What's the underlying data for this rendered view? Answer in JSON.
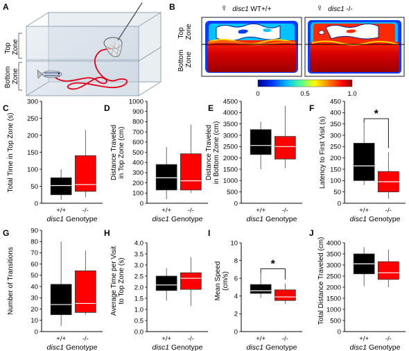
{
  "panel_labels": [
    "A",
    "B",
    "C",
    "D",
    "E",
    "F",
    "G",
    "H",
    "I",
    "J"
  ],
  "panel_a": {
    "top_zone": "Top\nZone",
    "bottom_zone": "Bottom\nZone"
  },
  "panel_b": {
    "wt_label_sex": "♀",
    "wt_label_gene": "disc1",
    "wt_label_genotype": " WT+/+",
    "mut_label_sex": "♀",
    "mut_label_gene": "disc1",
    "mut_label_genotype": " -/-",
    "top_zone": "Top\nZone",
    "bottom_zone": "Bottom\nZone",
    "colorbar_ticks": [
      "0",
      "0.5",
      "1.0"
    ],
    "colors": {
      "hot": "#b80000",
      "warm": "#ff3a00",
      "cool": "#1e6ff0",
      "border": "#1a1a1a"
    }
  },
  "genotype_label": {
    "gene": "disc1",
    "rest": " Genotype"
  },
  "colors": {
    "wt": "#000000",
    "mut": "#ff0000",
    "whisker": "#555555"
  },
  "chart_data": [
    {
      "panel": "C",
      "type": "box",
      "categories": [],
      "ylabel": "Total Time in Top Zone (s)",
      "yticks": [
        "0",
        "50",
        "100",
        "150",
        "200",
        "250",
        "300"
      ],
      "ylim": [
        0,
        300
      ],
      "series": [
        {
          "name": "+/+",
          "whisker_min": 10,
          "q1": 25,
          "median": 52,
          "q3": 75,
          "whisker_max": 100
        },
        {
          "name": "-/-",
          "whisker_min": 18,
          "q1": 35,
          "median": 55,
          "q3": 140,
          "whisker_max": 215
        }
      ]
    },
    {
      "panel": "D",
      "type": "box",
      "categories": [
        "+/+",
        "-/-"
      ],
      "ylabel": "Distance Traveled\nin Top Zone (cm)",
      "yticks": [
        "0",
        "100",
        "200",
        "300",
        "400",
        "500",
        "600",
        "700",
        "800",
        "900",
        "1000"
      ],
      "ylim": [
        0,
        1000
      ],
      "series": [
        {
          "name": "+/+",
          "whisker_min": 40,
          "q1": 130,
          "median": 250,
          "q3": 380,
          "whisker_max": 550
        },
        {
          "name": "-/-",
          "whisker_min": 100,
          "q1": 130,
          "median": 220,
          "q3": 485,
          "whisker_max": 770
        }
      ]
    },
    {
      "panel": "E",
      "type": "box",
      "categories": [
        "+/+",
        "-/-"
      ],
      "ylabel": "Distance Traveled\nin Bottom Zone (cm)",
      "yticks": [
        "0",
        "500",
        "1000",
        "1500",
        "2000",
        "2500",
        "3000",
        "3500",
        "4000",
        "4500"
      ],
      "ylim": [
        0,
        4500
      ],
      "series": [
        {
          "name": "+/+",
          "whisker_min": 1500,
          "q1": 2150,
          "median": 2550,
          "q3": 3250,
          "whisker_max": 3600
        },
        {
          "name": "-/-",
          "whisker_min": 1550,
          "q1": 1950,
          "median": 2500,
          "q3": 2950,
          "whisker_max": 4300
        }
      ]
    },
    {
      "panel": "F",
      "type": "box",
      "categories": [
        "+/+",
        "-/-"
      ],
      "ylabel": "Latency to First Visit (s)",
      "yticks": [
        "0",
        "50",
        "100",
        "150",
        "200",
        "250",
        "300",
        "350",
        "400",
        "450"
      ],
      "ylim": [
        0,
        450
      ],
      "significance": "*",
      "series": [
        {
          "name": "+/+",
          "whisker_min": 80,
          "q1": 100,
          "median": 165,
          "q3": 265,
          "whisker_max": 355
        },
        {
          "name": "-/-",
          "whisker_min": 20,
          "q1": 50,
          "median": 95,
          "q3": 140,
          "whisker_max": 225
        }
      ]
    },
    {
      "panel": "G",
      "type": "box",
      "categories": [
        "+/+",
        "-/-"
      ],
      "ylabel": "Number of Transitions",
      "yticks": [
        "0",
        "10",
        "20",
        "30",
        "40",
        "50",
        "60",
        "70",
        "80",
        "90"
      ],
      "ylim": [
        0,
        90
      ],
      "series": [
        {
          "name": "+/+",
          "whisker_min": 5,
          "q1": 15,
          "median": 24,
          "q3": 42,
          "whisker_max": 80
        },
        {
          "name": "-/-",
          "whisker_min": 15,
          "q1": 17,
          "median": 25,
          "q3": 54,
          "whisker_max": 72
        }
      ]
    },
    {
      "panel": "H",
      "type": "box",
      "categories": [
        "+/+",
        "-/-"
      ],
      "ylabel": "Average Time per Visit\nto Top Zone (s)",
      "yticks": [
        "0.0",
        "0.5",
        "1.0",
        "1.5",
        "2.0",
        "2.5",
        "3.0",
        "3.5",
        "4.0"
      ],
      "ylim": [
        0,
        4
      ],
      "series": [
        {
          "name": "+/+",
          "whisker_min": 1.4,
          "q1": 1.85,
          "median": 2.1,
          "q3": 2.5,
          "whisker_max": 2.85
        },
        {
          "name": "-/-",
          "whisker_min": 1.15,
          "q1": 1.9,
          "median": 2.4,
          "q3": 2.65,
          "whisker_max": 3.35
        }
      ]
    },
    {
      "panel": "I",
      "type": "box",
      "categories": [
        "+/+",
        "-/-"
      ],
      "ylabel": "Mean Speed\n(cm/s)",
      "yticks": [
        "0",
        "2",
        "4",
        "6",
        "8",
        "10"
      ],
      "ylim": [
        0,
        10
      ],
      "significance": "*",
      "series": [
        {
          "name": "+/+",
          "whisker_min": 3.8,
          "q1": 4.3,
          "median": 4.6,
          "q3": 5.3,
          "whisker_max": 6.6
        },
        {
          "name": "-/-",
          "whisker_min": 3.1,
          "q1": 3.5,
          "median": 3.9,
          "q3": 4.7,
          "whisker_max": 5.4
        }
      ]
    },
    {
      "panel": "J",
      "type": "box",
      "categories": [
        "+/+",
        "-/-"
      ],
      "ylabel": "Total Distance Traveled (cm)",
      "yticks": [
        "0",
        "500",
        "1000",
        "1500",
        "2000",
        "2500",
        "3000",
        "3500",
        "4000"
      ],
      "ylim": [
        0,
        4000
      ],
      "series": [
        {
          "name": "+/+",
          "whisker_min": 2050,
          "q1": 2600,
          "median": 3050,
          "q3": 3500,
          "whisker_max": 3800
        },
        {
          "name": "-/-",
          "whisker_min": 2000,
          "q1": 2350,
          "median": 2650,
          "q3": 3150,
          "whisker_max": 3700
        }
      ]
    }
  ]
}
